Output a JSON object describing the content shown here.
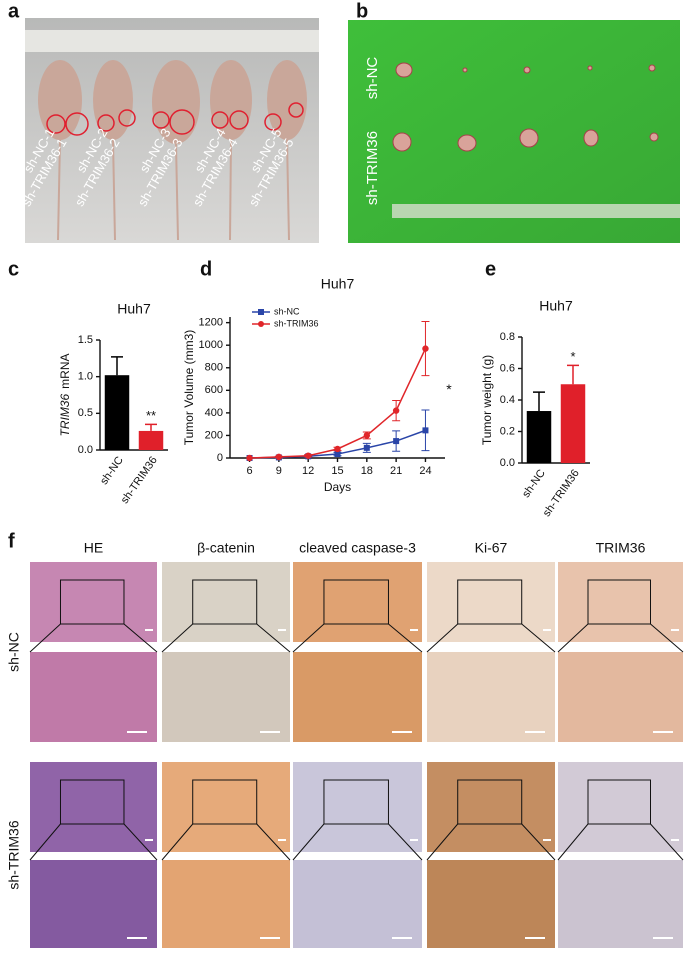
{
  "figure": {
    "panel_labels": [
      "a",
      "b",
      "c",
      "d",
      "e",
      "f"
    ],
    "panel_a": {
      "mouse_labels": [
        [
          "sh-NC-1",
          "sh-TRIM36-1"
        ],
        [
          "sh-NC-2",
          "sh-TRIM36-2"
        ],
        [
          "sh-NC-3",
          "sh-TRIM36-3"
        ],
        [
          "sh-NC-4",
          "sh-TRIM36-4"
        ],
        [
          "sh-NC-5",
          "sh-TRIM36-5"
        ]
      ]
    },
    "panel_b": {
      "row_labels": [
        "sh-NC",
        "sh-TRIM36"
      ]
    },
    "panel_f": {
      "columns": [
        "HE",
        "β-catenin",
        "cleaved caspase-3",
        "Ki-67",
        "TRIM36"
      ],
      "rows": [
        "sh-NC",
        "sh-TRIM36"
      ]
    }
  },
  "chart_data": [
    {
      "type": "bar",
      "title": "Huh7",
      "ylabel": [
        "TRIM36",
        "mRNA"
      ],
      "categories": [
        "sh-NC",
        "sh-TRIM36"
      ],
      "values": [
        1.02,
        0.26
      ],
      "errors": [
        0.25,
        0.09
      ],
      "colors": [
        "#000000",
        "#e0202a"
      ],
      "value_annotations": [
        null,
        "**"
      ],
      "ylim": [
        0,
        1.5
      ],
      "yticks": [
        {
          "value": 0,
          "label": "0.0"
        },
        0.5,
        {
          "value": 1,
          "label": "1.0"
        },
        1.5
      ]
    },
    {
      "type": "line",
      "title": "Huh7",
      "xlabel": "Days",
      "ylabel": "Tumor Volume (mm3)",
      "x": [
        6,
        9,
        12,
        15,
        18,
        21,
        24
      ],
      "series": [
        {
          "name": "sh-NC",
          "color": "#2a45a8",
          "marker": "square",
          "values": [
            0,
            5,
            15,
            35,
            90,
            150,
            245
          ],
          "errors": [
            0,
            5,
            10,
            15,
            40,
            90,
            180
          ]
        },
        {
          "name": "sh-TRIM36",
          "color": "#e0262a",
          "marker": "circle",
          "values": [
            0,
            10,
            20,
            80,
            200,
            420,
            970
          ],
          "errors": [
            0,
            5,
            10,
            15,
            30,
            90,
            240
          ]
        }
      ],
      "annotation": "*",
      "legend": "upper-left",
      "xlim": [
        4,
        26
      ],
      "xticks": [
        6,
        9,
        12,
        15,
        18,
        21,
        24
      ],
      "ylim": [
        0,
        1250
      ],
      "yticks": [
        0,
        200,
        400,
        600,
        800,
        1000,
        1200
      ]
    },
    {
      "type": "bar",
      "title": "Huh7",
      "ylabel": [
        "Tumor weight (g)"
      ],
      "categories": [
        "sh-NC",
        "sh-TRIM36"
      ],
      "values": [
        0.33,
        0.5
      ],
      "errors": [
        0.12,
        0.12
      ],
      "colors": [
        "#000000",
        "#e0202a"
      ],
      "value_annotations": [
        null,
        "*"
      ],
      "ylim": [
        0,
        0.8
      ],
      "yticks": [
        {
          "value": 0,
          "label": "0.0"
        },
        0.2,
        0.4,
        0.6,
        0.8
      ]
    }
  ]
}
